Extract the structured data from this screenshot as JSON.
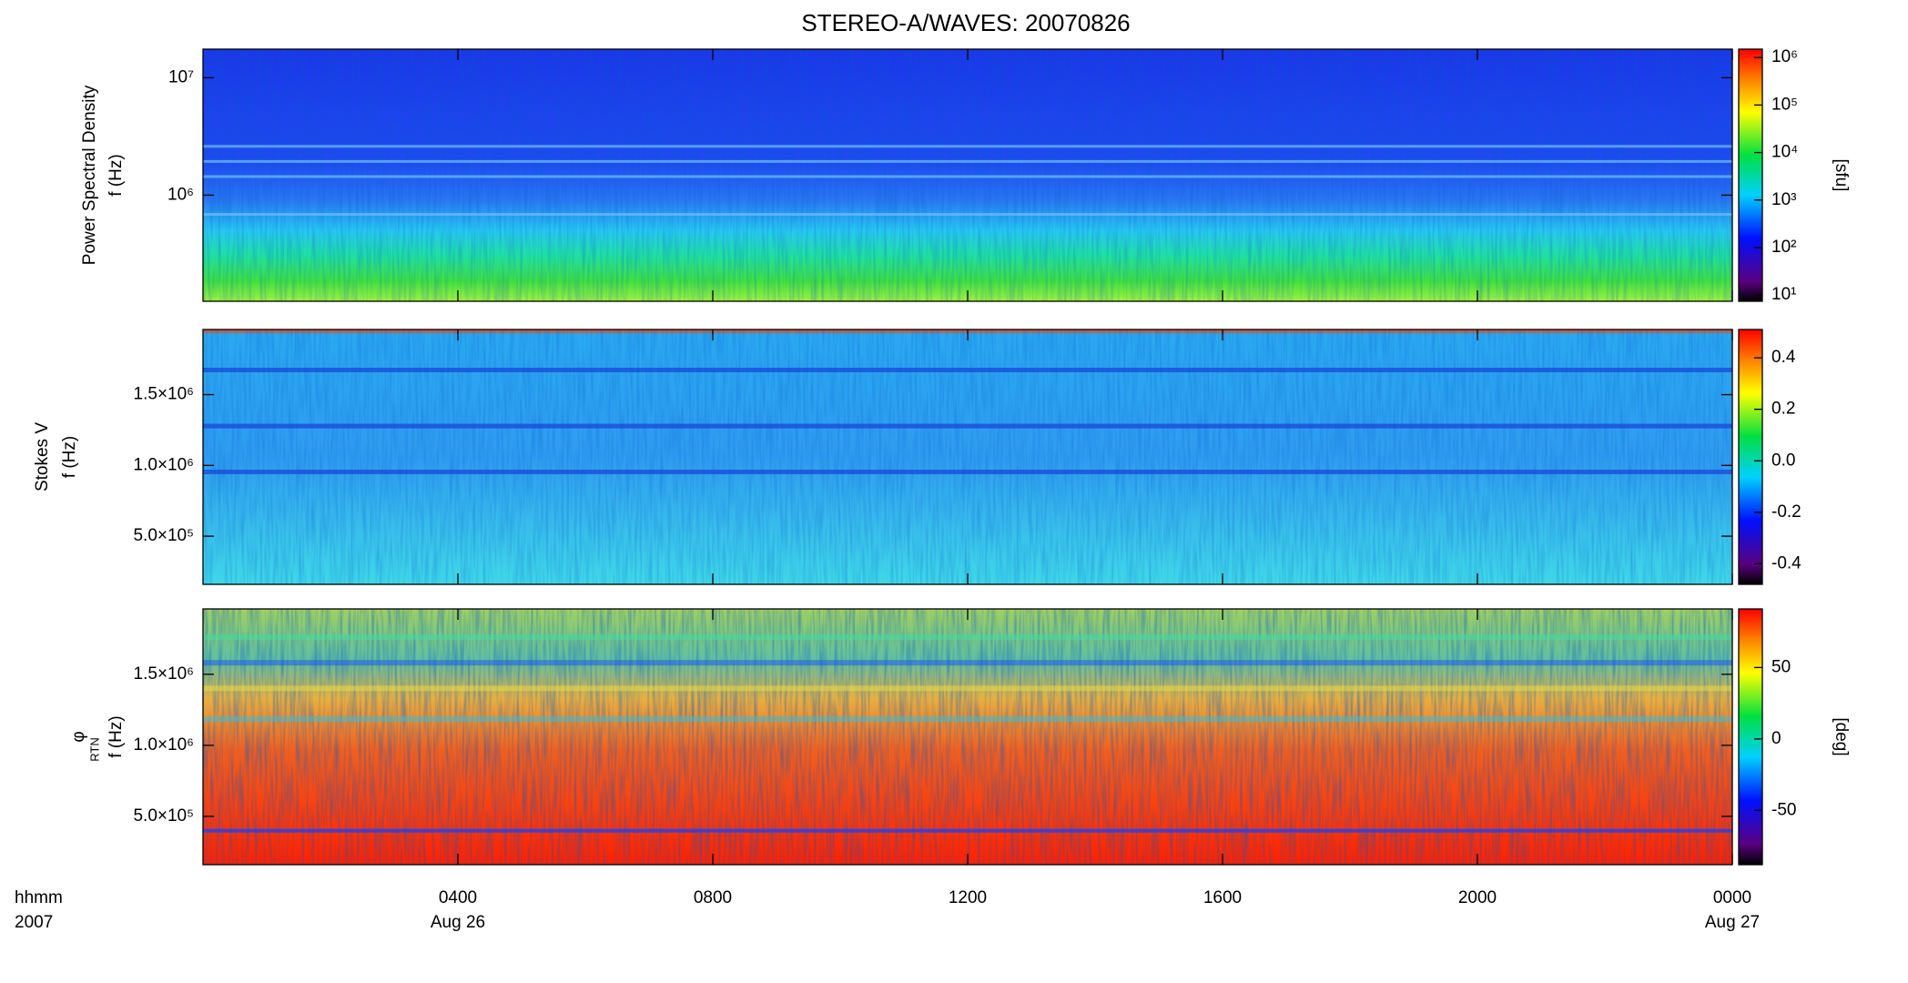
{
  "chart_data": [
    {
      "type": "heatmap",
      "title": "STEREO-A/WAVES: 20070826",
      "ylabel": [
        "Power Spectral Density",
        "f (Hz)"
      ],
      "ylog": true,
      "ylim": [
        125000,
        17500000
      ],
      "yticks": [
        {
          "value": 1000000,
          "label": "10⁶"
        },
        {
          "value": 10000000,
          "label": "10⁷"
        }
      ],
      "colorbar": {
        "label": "[sfu]",
        "log": true,
        "clim": [
          7.4,
          1500000
        ],
        "ticks": [
          {
            "value": 10,
            "label": "10¹"
          },
          {
            "value": 100,
            "label": "10²"
          },
          {
            "value": 1000,
            "label": "10³"
          },
          {
            "value": 10000,
            "label": "10⁴"
          },
          {
            "value": 100000,
            "label": "10⁵"
          },
          {
            "value": 1000000,
            "label": "10⁶"
          }
        ]
      }
    },
    {
      "type": "heatmap",
      "ylabel": [
        "Stokes V",
        "f (Hz)"
      ],
      "ylog": false,
      "ylim": [
        160000,
        1960000
      ],
      "yticks": [
        {
          "value": 500000,
          "label": "5.0×10⁵"
        },
        {
          "value": 1000000,
          "label": "1.0×10⁶"
        },
        {
          "value": 1500000,
          "label": "1.5×10⁶"
        }
      ],
      "colorbar": {
        "label": "",
        "log": false,
        "clim": [
          -0.48,
          0.51
        ],
        "ticks": [
          -0.4,
          -0.2,
          {
            "value": 0,
            "label": "0.0"
          },
          0.2,
          0.4
        ]
      }
    },
    {
      "type": "heatmap",
      "ylabel": [
        "φ",
        "f (Hz)"
      ],
      "ylabel_sub": "RTN",
      "ylog": false,
      "ylim": [
        160000,
        1960000
      ],
      "yticks": [
        {
          "value": 500000,
          "label": "5.0×10⁵"
        },
        {
          "value": 1000000,
          "label": "1.0×10⁶"
        },
        {
          "value": 1500000,
          "label": "1.5×10⁶"
        }
      ],
      "colorbar": {
        "label": "[deg]",
        "log": false,
        "clim": [
          -88,
          91
        ],
        "ticks": [
          -50,
          0,
          50
        ]
      },
      "xlabel": [
        "hhmm",
        "2007"
      ],
      "xlim": [
        0,
        24
      ],
      "xticks": [
        {
          "value": 4,
          "label": "0400"
        },
        {
          "value": 8,
          "label": "0800"
        },
        {
          "value": 12,
          "label": "1200"
        },
        {
          "value": 16,
          "label": "1600"
        },
        {
          "value": 20,
          "label": "2000"
        },
        {
          "value": 24,
          "label": "0000"
        }
      ],
      "x_date_labels": [
        {
          "value": 4,
          "label": "Aug 26"
        },
        {
          "value": 24,
          "label": "Aug 27"
        }
      ]
    }
  ]
}
